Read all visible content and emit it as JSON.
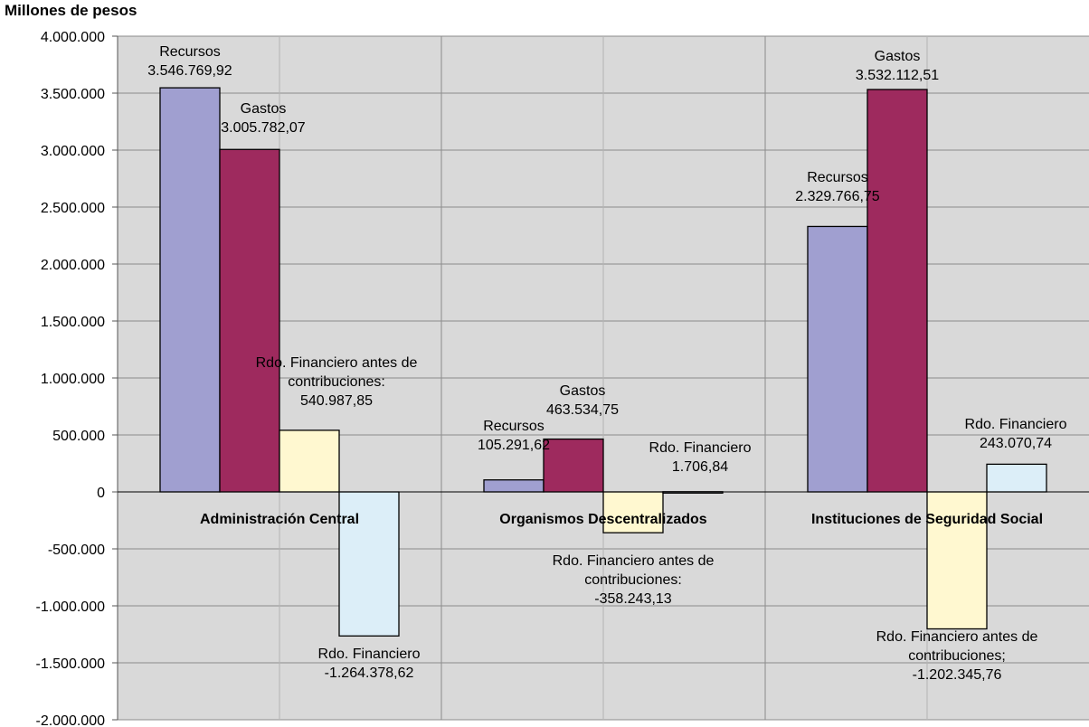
{
  "chart_data": {
    "type": "bar",
    "ylabel": "Millones de pesos",
    "ylim": [
      -2000000,
      4000000
    ],
    "yticks": [
      {
        "value": 4000000,
        "label": "4.000.000"
      },
      {
        "value": 3500000,
        "label": "3.500.000"
      },
      {
        "value": 3000000,
        "label": "3.000.000"
      },
      {
        "value": 2500000,
        "label": "2.500.000"
      },
      {
        "value": 2000000,
        "label": "2.000.000"
      },
      {
        "value": 1500000,
        "label": "1.500.000"
      },
      {
        "value": 1000000,
        "label": "1.000.000"
      },
      {
        "value": 500000,
        "label": "500.000"
      },
      {
        "value": 0,
        "label": "0"
      },
      {
        "value": -500000,
        "label": "-500.000"
      },
      {
        "value": -1000000,
        "label": "-1.000.000"
      },
      {
        "value": -1500000,
        "label": "-1.500.000"
      },
      {
        "value": -2000000,
        "label": "-2.000.000"
      }
    ],
    "grid": true,
    "categories": [
      "Administración Central",
      "Organismos Descentralizados",
      "Instituciones de Seguridad Social"
    ],
    "series": [
      {
        "key": "recursos",
        "color": "#a09fd0",
        "values": [
          3546769.92,
          105291.62,
          2329766.75
        ]
      },
      {
        "key": "gastos",
        "color": "#9e2a5e",
        "values": [
          3005782.07,
          463534.75,
          3532112.51
        ]
      },
      {
        "key": "rdo_antes",
        "color": "#fff8d0",
        "values": [
          540987.85,
          -358243.13,
          -1202345.76
        ]
      },
      {
        "key": "rdo_financiero",
        "color": "#dceef8",
        "values": [
          -1264378.62,
          1706.84,
          243070.74
        ]
      }
    ],
    "annotations": [
      {
        "cat": 0,
        "series": 0,
        "lines": [
          "Recursos",
          "3.546.769,92"
        ]
      },
      {
        "cat": 0,
        "series": 1,
        "lines": [
          "Gastos",
          "3.005.782,07"
        ]
      },
      {
        "cat": 0,
        "series": 2,
        "lines": [
          "Rdo. Financiero antes de",
          "contribuciones:",
          "540.987,85"
        ]
      },
      {
        "cat": 0,
        "series": 3,
        "lines": [
          "Rdo. Financiero",
          "-1.264.378,62"
        ]
      },
      {
        "cat": 1,
        "series": 0,
        "lines": [
          "Recursos",
          "105.291,62"
        ]
      },
      {
        "cat": 1,
        "series": 1,
        "lines": [
          "Gastos",
          "463.534,75"
        ]
      },
      {
        "cat": 1,
        "series": 2,
        "lines": [
          "Rdo. Financiero antes de",
          "contribuciones:",
          "-358.243,13"
        ]
      },
      {
        "cat": 1,
        "series": 3,
        "lines": [
          "Rdo. Financiero",
          "1.706,84"
        ]
      },
      {
        "cat": 2,
        "series": 0,
        "lines": [
          "Recursos",
          "2.329.766,75"
        ]
      },
      {
        "cat": 2,
        "series": 1,
        "lines": [
          "Gastos",
          "3.532.112,51"
        ]
      },
      {
        "cat": 2,
        "series": 2,
        "lines": [
          "Rdo. Financiero antes de",
          "contribuciones;",
          "-1.202.345,76"
        ]
      },
      {
        "cat": 2,
        "series": 3,
        "lines": [
          "Rdo. Financiero",
          "243.070,74"
        ]
      }
    ]
  }
}
